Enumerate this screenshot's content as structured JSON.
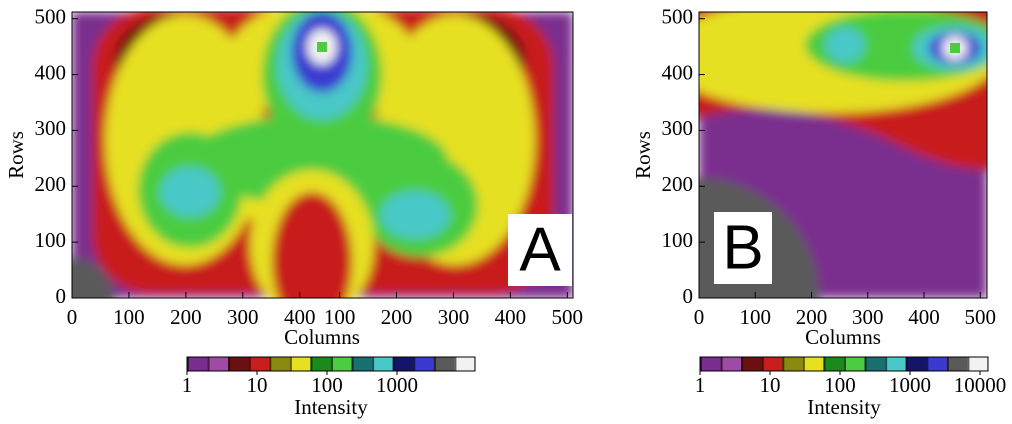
{
  "chart_data": [
    {
      "type": "heatmap",
      "panel_label": "A",
      "x_label": "Columns",
      "y_label": "Rows",
      "xlim": [
        0,
        880
      ],
      "xticks": [
        0,
        100,
        200,
        300,
        400,
        {
          "value": 470,
          "label": "100"
        },
        {
          "value": 570,
          "label": "200"
        },
        {
          "value": 670,
          "label": "300"
        },
        {
          "value": 770,
          "label": "400"
        },
        {
          "value": 870,
          "label": "500"
        }
      ],
      "ylim": [
        0,
        512
      ],
      "yticks": [
        0,
        100,
        200,
        300,
        400,
        500
      ],
      "colorbar": {
        "label": "Intensity",
        "log": true,
        "clim": [
          1,
          13000
        ],
        "ticks": [
          1,
          10,
          100,
          1000
        ],
        "colors": [
          "#7a2d8e",
          "#a04aa8",
          "#6a1010",
          "#c81e1e",
          "#8a8a10",
          "#e6e020",
          "#1a8a1a",
          "#4ccc40",
          "#1a7070",
          "#48c8c8",
          "#14146a",
          "#3a3ad0",
          "#5a5a5a",
          "#f2f2f2"
        ]
      }
    },
    {
      "type": "heatmap",
      "panel_label": "B",
      "x_label": "Columns",
      "y_label": "Rows",
      "xlim": [
        0,
        512
      ],
      "xticks": [
        0,
        100,
        200,
        300,
        400,
        500
      ],
      "ylim": [
        0,
        512
      ],
      "yticks": [
        0,
        100,
        200,
        300,
        400,
        500
      ],
      "colorbar": {
        "label": "Intensity",
        "log": true,
        "clim": [
          1,
          13000
        ],
        "ticks": [
          1,
          10,
          100,
          1000,
          10000
        ],
        "colors": [
          "#7a2d8e",
          "#a04aa8",
          "#6a1010",
          "#c81e1e",
          "#8a8a10",
          "#e6e020",
          "#1a8a1a",
          "#4ccc40",
          "#1a7070",
          "#48c8c8",
          "#14146a",
          "#3a3ad0",
          "#5a5a5a",
          "#f2f2f2"
        ]
      }
    }
  ]
}
